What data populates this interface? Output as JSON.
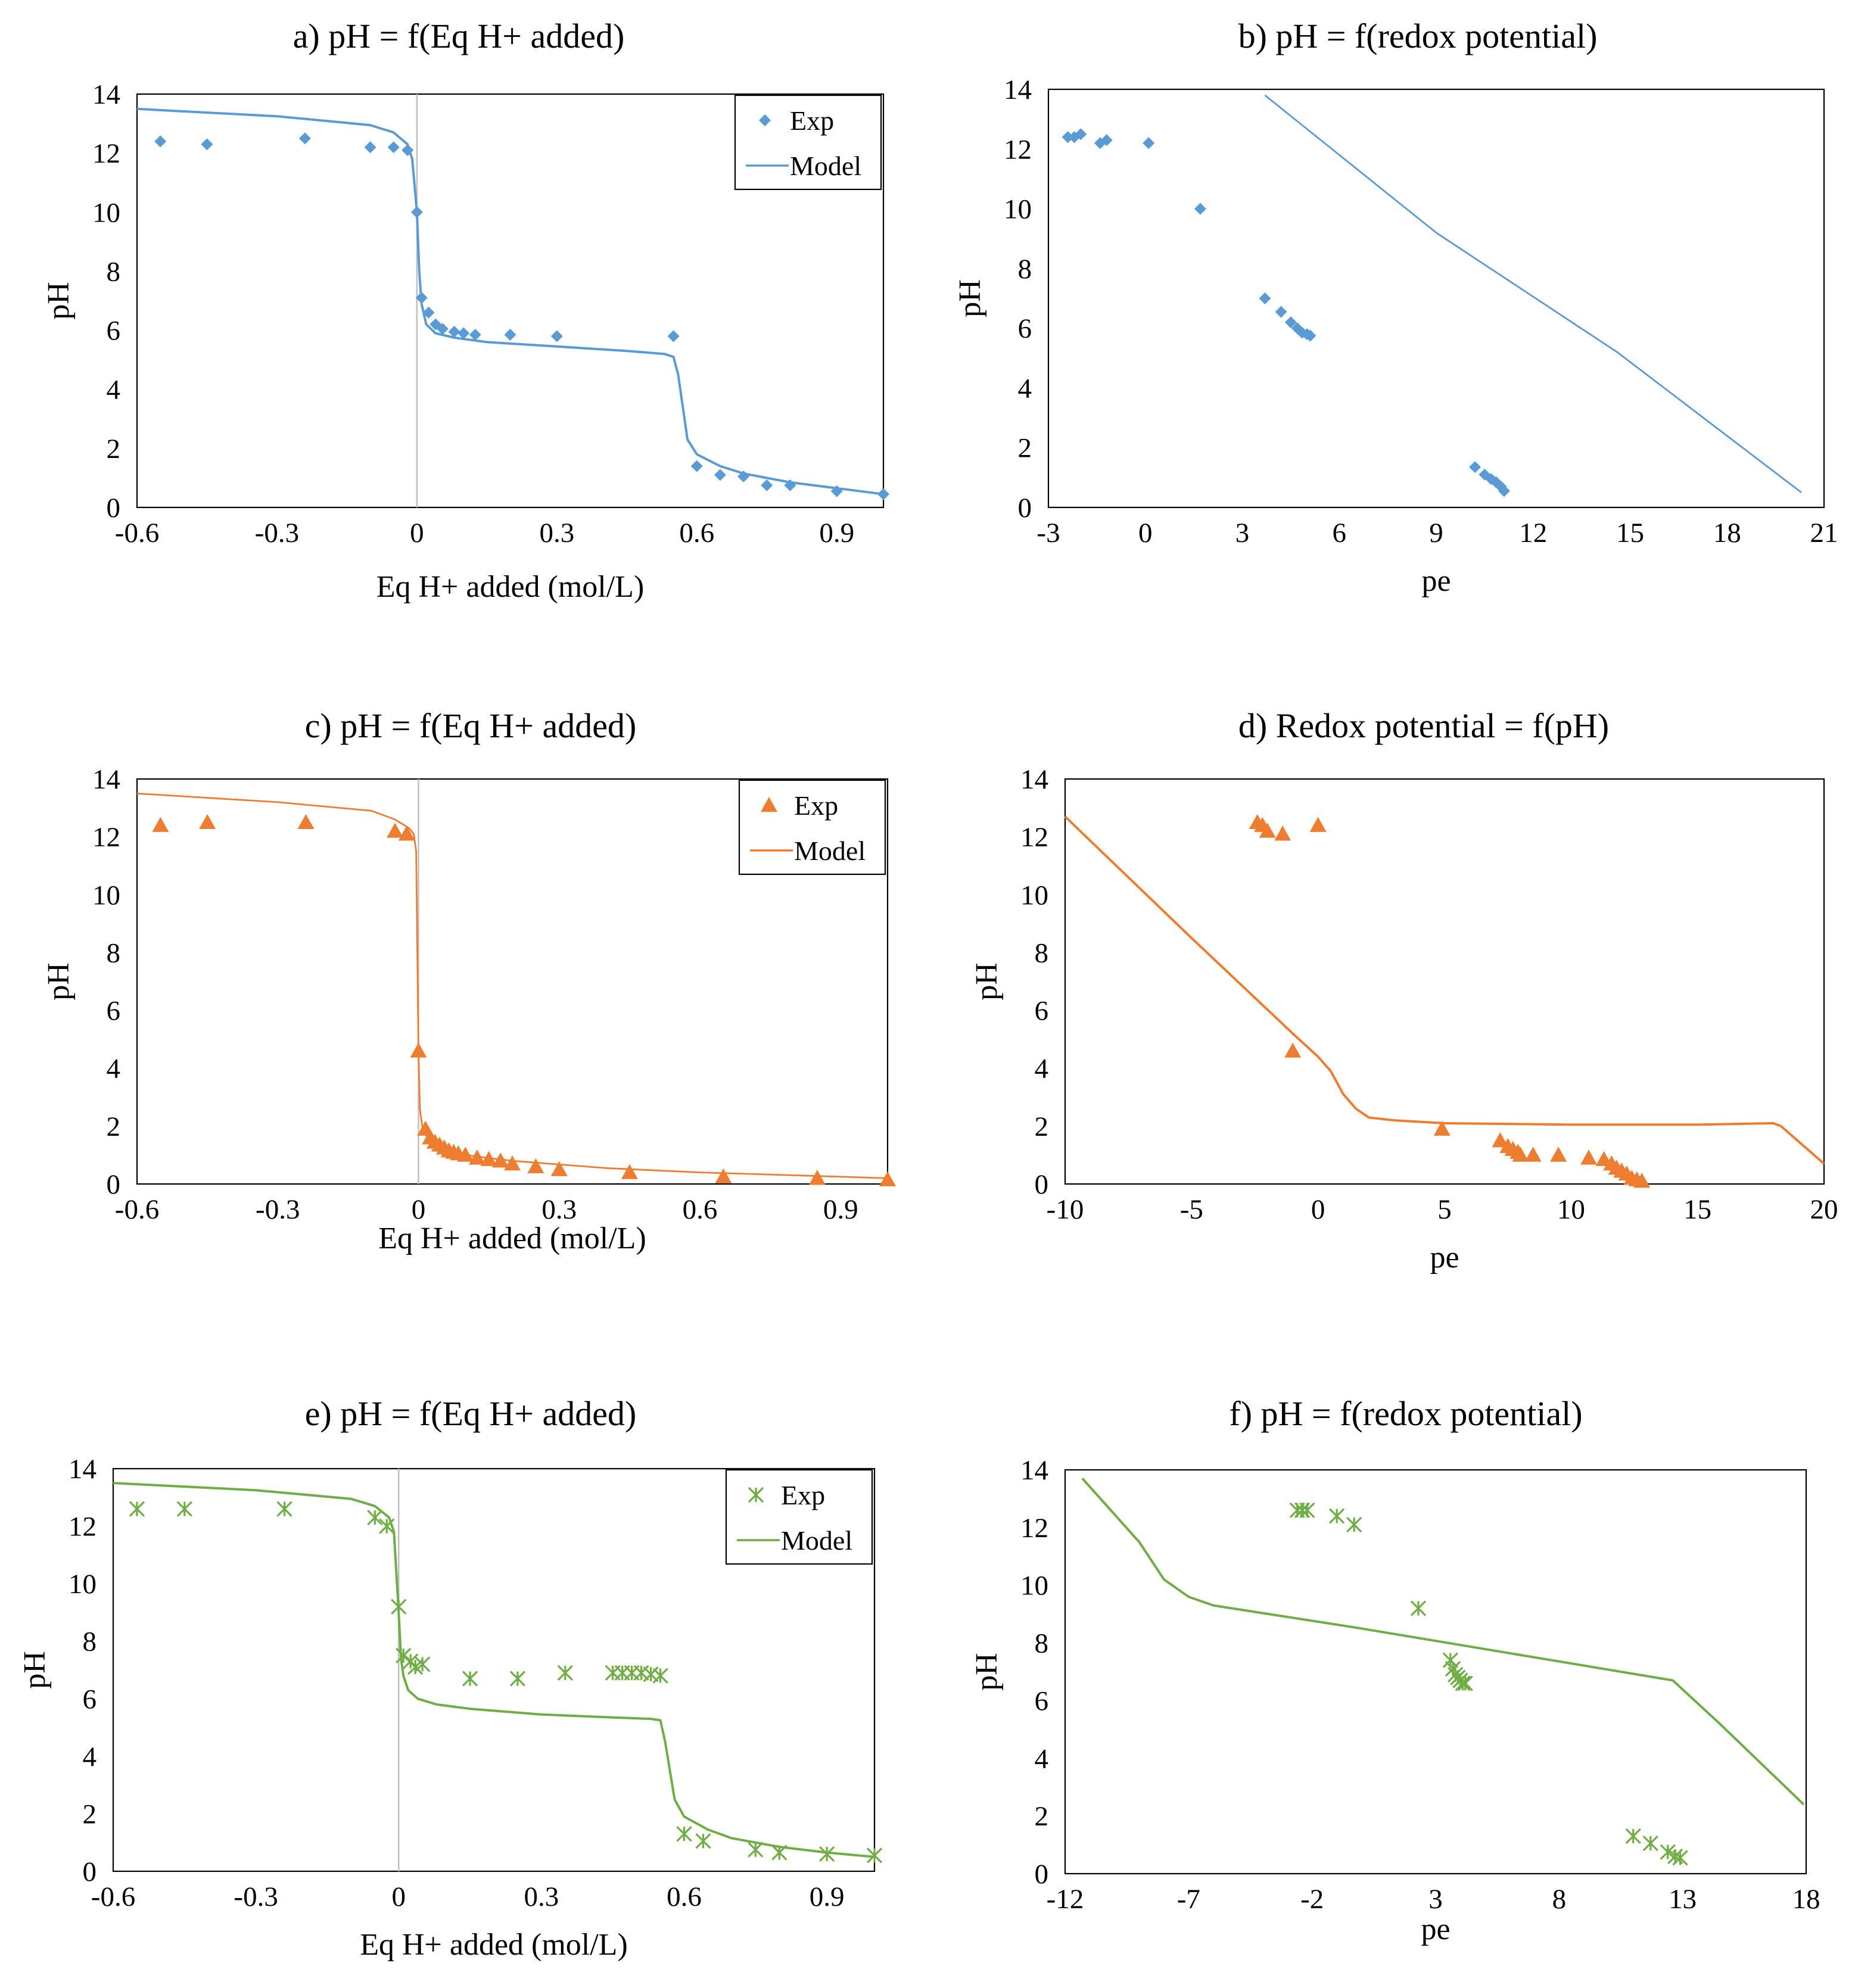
{
  "chart_data": [
    {
      "id": "a",
      "type": "scatter",
      "title": "a) pH = f(Eq H+ added)",
      "xlabel": "Eq H+ added (mol/L)",
      "ylabel": "pH",
      "xlim": [
        -0.6,
        1.0
      ],
      "ylim": [
        0,
        14
      ],
      "xticks": [
        -0.6,
        -0.3,
        0,
        0.3,
        0.6,
        0.9
      ],
      "yticks": [
        0,
        2,
        4,
        6,
        8,
        10,
        12,
        14
      ],
      "xtick_labels": [
        "-0.6",
        "-0.3",
        "0",
        "0.3",
        "0.6",
        "0.9"
      ],
      "ytick_labels": [
        "0",
        "2",
        "4",
        "6",
        "8",
        "10",
        "12",
        "14"
      ],
      "vline_x": 0,
      "legend": {
        "position": "top-right",
        "exp_label": "Exp",
        "model_label": "Model"
      },
      "color": "#5b9bd5",
      "marker": "diamond",
      "series": [
        {
          "name": "Exp",
          "kind": "points",
          "x": [
            -0.55,
            -0.45,
            -0.24,
            -0.1,
            -0.05,
            -0.02,
            0.0,
            0.01,
            0.025,
            0.04,
            0.055,
            0.08,
            0.1,
            0.125,
            0.2,
            0.3,
            0.55,
            0.6,
            0.65,
            0.7,
            0.75,
            0.8,
            0.9,
            1.0
          ],
          "y": [
            12.4,
            12.3,
            12.5,
            12.2,
            12.2,
            12.1,
            10.0,
            7.1,
            6.6,
            6.2,
            6.05,
            5.95,
            5.9,
            5.85,
            5.85,
            5.8,
            5.8,
            1.4,
            1.1,
            1.05,
            0.75,
            0.75,
            0.55,
            0.45
          ]
        },
        {
          "name": "Model",
          "kind": "line",
          "x": [
            -0.6,
            -0.3,
            -0.1,
            -0.05,
            -0.02,
            -0.01,
            0.0,
            0.005,
            0.01,
            0.02,
            0.04,
            0.08,
            0.15,
            0.3,
            0.45,
            0.53,
            0.55,
            0.56,
            0.58,
            0.6,
            0.65,
            0.7,
            0.8,
            0.9,
            1.0
          ],
          "y": [
            13.5,
            13.25,
            12.95,
            12.7,
            12.3,
            11.8,
            10.0,
            8.0,
            6.9,
            6.2,
            5.9,
            5.75,
            5.6,
            5.45,
            5.3,
            5.2,
            5.1,
            4.5,
            2.3,
            1.8,
            1.4,
            1.15,
            0.85,
            0.65,
            0.45
          ]
        }
      ]
    },
    {
      "id": "b",
      "type": "scatter",
      "title": "b) pH = f(redox potential)",
      "xlabel": "pe",
      "ylabel": "pH",
      "xlim": [
        -3,
        21
      ],
      "ylim": [
        0,
        14
      ],
      "xticks": [
        -3,
        0,
        3,
        6,
        9,
        12,
        15,
        18,
        21
      ],
      "yticks": [
        0,
        2,
        4,
        6,
        8,
        10,
        12,
        14
      ],
      "xtick_labels": [
        "-3",
        "0",
        "3",
        "6",
        "9",
        "12",
        "15",
        "18",
        "21"
      ],
      "ytick_labels": [
        "0",
        "2",
        "4",
        "6",
        "8",
        "10",
        "12",
        "14"
      ],
      "color": "#5b9bd5",
      "marker": "diamond",
      "series": [
        {
          "name": "Exp",
          "kind": "points",
          "x": [
            -2.4,
            -2.2,
            -2.0,
            -1.4,
            -1.2,
            0.1,
            1.7,
            3.7,
            4.2,
            4.5,
            4.7,
            4.85,
            5.0,
            5.1,
            10.2,
            10.5,
            10.7,
            10.85,
            11.0,
            11.1
          ],
          "y": [
            12.4,
            12.4,
            12.5,
            12.2,
            12.3,
            12.2,
            10.0,
            7.0,
            6.55,
            6.2,
            6.0,
            5.85,
            5.8,
            5.75,
            1.35,
            1.1,
            0.95,
            0.85,
            0.7,
            0.55
          ]
        },
        {
          "name": "Model",
          "kind": "line",
          "x": [
            3.7,
            9.0,
            14.6,
            20.3
          ],
          "y": [
            13.8,
            9.2,
            5.2,
            0.5
          ]
        }
      ]
    },
    {
      "id": "c",
      "type": "scatter",
      "title": "c) pH = f(Eq H+ added)",
      "xlabel": "Eq H+ added (mol/L)",
      "ylabel": "pH",
      "xlim": [
        -0.6,
        1.0
      ],
      "ylim": [
        0,
        14
      ],
      "xticks": [
        -0.6,
        -0.3,
        0,
        0.3,
        0.6,
        0.9
      ],
      "yticks": [
        0,
        2,
        4,
        6,
        8,
        10,
        12,
        14
      ],
      "xtick_labels": [
        "-0.6",
        "-0.3",
        "0",
        "0.3",
        "0.6",
        "0.9"
      ],
      "ytick_labels": [
        "0",
        "2",
        "4",
        "6",
        "8",
        "10",
        "12",
        "14"
      ],
      "vline_x": 0,
      "legend": {
        "position": "top-right",
        "exp_label": "Exp",
        "model_label": "Model"
      },
      "color": "#ed7d31",
      "marker": "triangle",
      "series": [
        {
          "name": "Exp",
          "kind": "points",
          "x": [
            -0.55,
            -0.45,
            -0.24,
            -0.05,
            -0.025,
            0.0,
            0.015,
            0.025,
            0.035,
            0.045,
            0.055,
            0.065,
            0.075,
            0.085,
            0.1,
            0.125,
            0.15,
            0.175,
            0.2,
            0.25,
            0.3,
            0.45,
            0.65,
            0.85,
            1.0
          ],
          "y": [
            12.4,
            12.5,
            12.5,
            12.2,
            12.1,
            4.6,
            1.9,
            1.6,
            1.45,
            1.35,
            1.25,
            1.15,
            1.1,
            1.05,
            1.0,
            0.9,
            0.85,
            0.8,
            0.7,
            0.6,
            0.5,
            0.4,
            0.25,
            0.2,
            0.15
          ]
        },
        {
          "name": "Model",
          "kind": "line",
          "x": [
            -0.6,
            -0.3,
            -0.1,
            -0.05,
            -0.02,
            -0.01,
            -0.005,
            0.0,
            0.003,
            0.008,
            0.015,
            0.03,
            0.06,
            0.1,
            0.2,
            0.4,
            0.6,
            0.8,
            1.0
          ],
          "y": [
            13.5,
            13.2,
            12.9,
            12.6,
            12.3,
            12.1,
            11.5,
            4.6,
            2.6,
            2.0,
            1.7,
            1.45,
            1.2,
            1.0,
            0.8,
            0.55,
            0.4,
            0.3,
            0.2
          ]
        }
      ]
    },
    {
      "id": "d",
      "type": "scatter",
      "title": "d) Redox potential = f(pH)",
      "xlabel": "pe",
      "ylabel": "pH",
      "xlim": [
        -10,
        20
      ],
      "ylim": [
        0,
        14
      ],
      "xticks": [
        -10,
        -5,
        0,
        5,
        10,
        15,
        20
      ],
      "yticks": [
        0,
        2,
        4,
        6,
        8,
        10,
        12,
        14
      ],
      "xtick_labels": [
        "-10",
        "-5",
        "0",
        "5",
        "10",
        "15",
        "20"
      ],
      "ytick_labels": [
        "0",
        "2",
        "4",
        "6",
        "8",
        "10",
        "12",
        "14"
      ],
      "color": "#ed7d31",
      "marker": "triangle",
      "series": [
        {
          "name": "Exp",
          "kind": "points",
          "x": [
            -2.4,
            -2.2,
            -2.0,
            -1.4,
            0.0,
            -1.0,
            4.9,
            7.2,
            7.5,
            7.7,
            7.9,
            8.0,
            8.5,
            9.5,
            10.7,
            11.3,
            11.6,
            11.8,
            12.0,
            12.2,
            12.4,
            12.6,
            12.8
          ],
          "y": [
            12.5,
            12.4,
            12.2,
            12.1,
            12.4,
            4.6,
            1.9,
            1.5,
            1.3,
            1.2,
            1.1,
            1.0,
            1.0,
            1.0,
            0.9,
            0.85,
            0.7,
            0.55,
            0.45,
            0.35,
            0.2,
            0.15,
            0.1
          ]
        },
        {
          "name": "Model",
          "kind": "line",
          "x": [
            -10,
            -5,
            -1,
            0,
            0.5,
            1,
            1.5,
            2,
            3,
            5,
            10,
            15,
            18,
            18.3,
            20
          ],
          "y": [
            12.7,
            8.5,
            5.2,
            4.4,
            3.9,
            3.1,
            2.6,
            2.3,
            2.2,
            2.1,
            2.05,
            2.05,
            2.1,
            2.0,
            0.7
          ]
        }
      ]
    },
    {
      "id": "e",
      "type": "scatter",
      "title": "e) pH = f(Eq H+ added)",
      "xlabel": "Eq H+ added (mol/L)",
      "ylabel": "pH",
      "xlim": [
        -0.6,
        1.0
      ],
      "ylim": [
        0,
        14
      ],
      "xticks": [
        -0.6,
        -0.3,
        0,
        0.3,
        0.6,
        0.9
      ],
      "yticks": [
        0,
        2,
        4,
        6,
        8,
        10,
        12,
        14
      ],
      "xtick_labels": [
        "-0.6",
        "-0.3",
        "0",
        "0.3",
        "0.6",
        "0.9"
      ],
      "ytick_labels": [
        "0",
        "2",
        "4",
        "6",
        "8",
        "10",
        "12",
        "14"
      ],
      "vline_x": 0,
      "legend": {
        "position": "top-right",
        "exp_label": "Exp",
        "model_label": "Model"
      },
      "color": "#70ad47",
      "marker": "asterisk",
      "series": [
        {
          "name": "Exp",
          "kind": "points",
          "x": [
            -0.55,
            -0.45,
            -0.24,
            -0.05,
            -0.025,
            0.0,
            0.01,
            0.025,
            0.035,
            0.05,
            0.15,
            0.25,
            0.35,
            0.45,
            0.47,
            0.49,
            0.51,
            0.53,
            0.55,
            0.6,
            0.64,
            0.75,
            0.8,
            0.9,
            1.0
          ],
          "y": [
            12.6,
            12.6,
            12.6,
            12.3,
            12.0,
            9.2,
            7.5,
            7.3,
            7.1,
            7.2,
            6.7,
            6.7,
            6.9,
            6.9,
            6.9,
            6.9,
            6.9,
            6.85,
            6.8,
            1.3,
            1.05,
            0.75,
            0.65,
            0.6,
            0.55
          ]
        },
        {
          "name": "Model",
          "kind": "line",
          "x": [
            -0.6,
            -0.3,
            -0.1,
            -0.05,
            -0.02,
            -0.01,
            0.0,
            0.005,
            0.01,
            0.02,
            0.04,
            0.08,
            0.15,
            0.3,
            0.45,
            0.53,
            0.55,
            0.56,
            0.58,
            0.6,
            0.65,
            0.7,
            0.8,
            0.9,
            1.0
          ],
          "y": [
            13.5,
            13.25,
            12.95,
            12.7,
            12.3,
            11.8,
            9.0,
            7.4,
            6.8,
            6.3,
            6.0,
            5.8,
            5.65,
            5.45,
            5.35,
            5.3,
            5.25,
            4.5,
            2.5,
            1.9,
            1.45,
            1.15,
            0.85,
            0.65,
            0.5
          ]
        }
      ]
    },
    {
      "id": "f",
      "type": "scatter",
      "title": "f) pH = f(redox potential)",
      "xlabel": "pe",
      "ylabel": "pH",
      "xlim": [
        -12,
        18
      ],
      "ylim": [
        0,
        14
      ],
      "xticks": [
        -12,
        -7,
        -2,
        3,
        8,
        13,
        18
      ],
      "yticks": [
        0,
        2,
        4,
        6,
        8,
        10,
        12,
        14
      ],
      "xtick_labels": [
        "-12",
        "-7",
        "-2",
        "3",
        "8",
        "13",
        "18"
      ],
      "ytick_labels": [
        "0",
        "2",
        "4",
        "6",
        "8",
        "10",
        "12",
        "14"
      ],
      "color": "#70ad47",
      "marker": "asterisk",
      "series": [
        {
          "name": "Exp",
          "kind": "points",
          "x": [
            -2.6,
            -2.4,
            -2.2,
            -1.0,
            -0.3,
            2.3,
            3.6,
            3.7,
            3.8,
            3.9,
            4.0,
            4.1,
            4.2,
            11.0,
            11.7,
            12.4,
            12.7,
            12.9
          ],
          "y": [
            12.6,
            12.6,
            12.6,
            12.4,
            12.1,
            9.2,
            7.4,
            7.1,
            6.9,
            6.8,
            6.7,
            6.6,
            6.6,
            1.3,
            1.05,
            0.75,
            0.6,
            0.55
          ]
        },
        {
          "name": "Model",
          "kind": "line",
          "x": [
            -11.3,
            -9.0,
            -8.0,
            -7.0,
            -6.0,
            0,
            12.6,
            14.5,
            17.9
          ],
          "y": [
            13.7,
            11.5,
            10.2,
            9.6,
            9.3,
            8.5,
            6.7,
            5.2,
            2.4
          ]
        }
      ]
    }
  ]
}
